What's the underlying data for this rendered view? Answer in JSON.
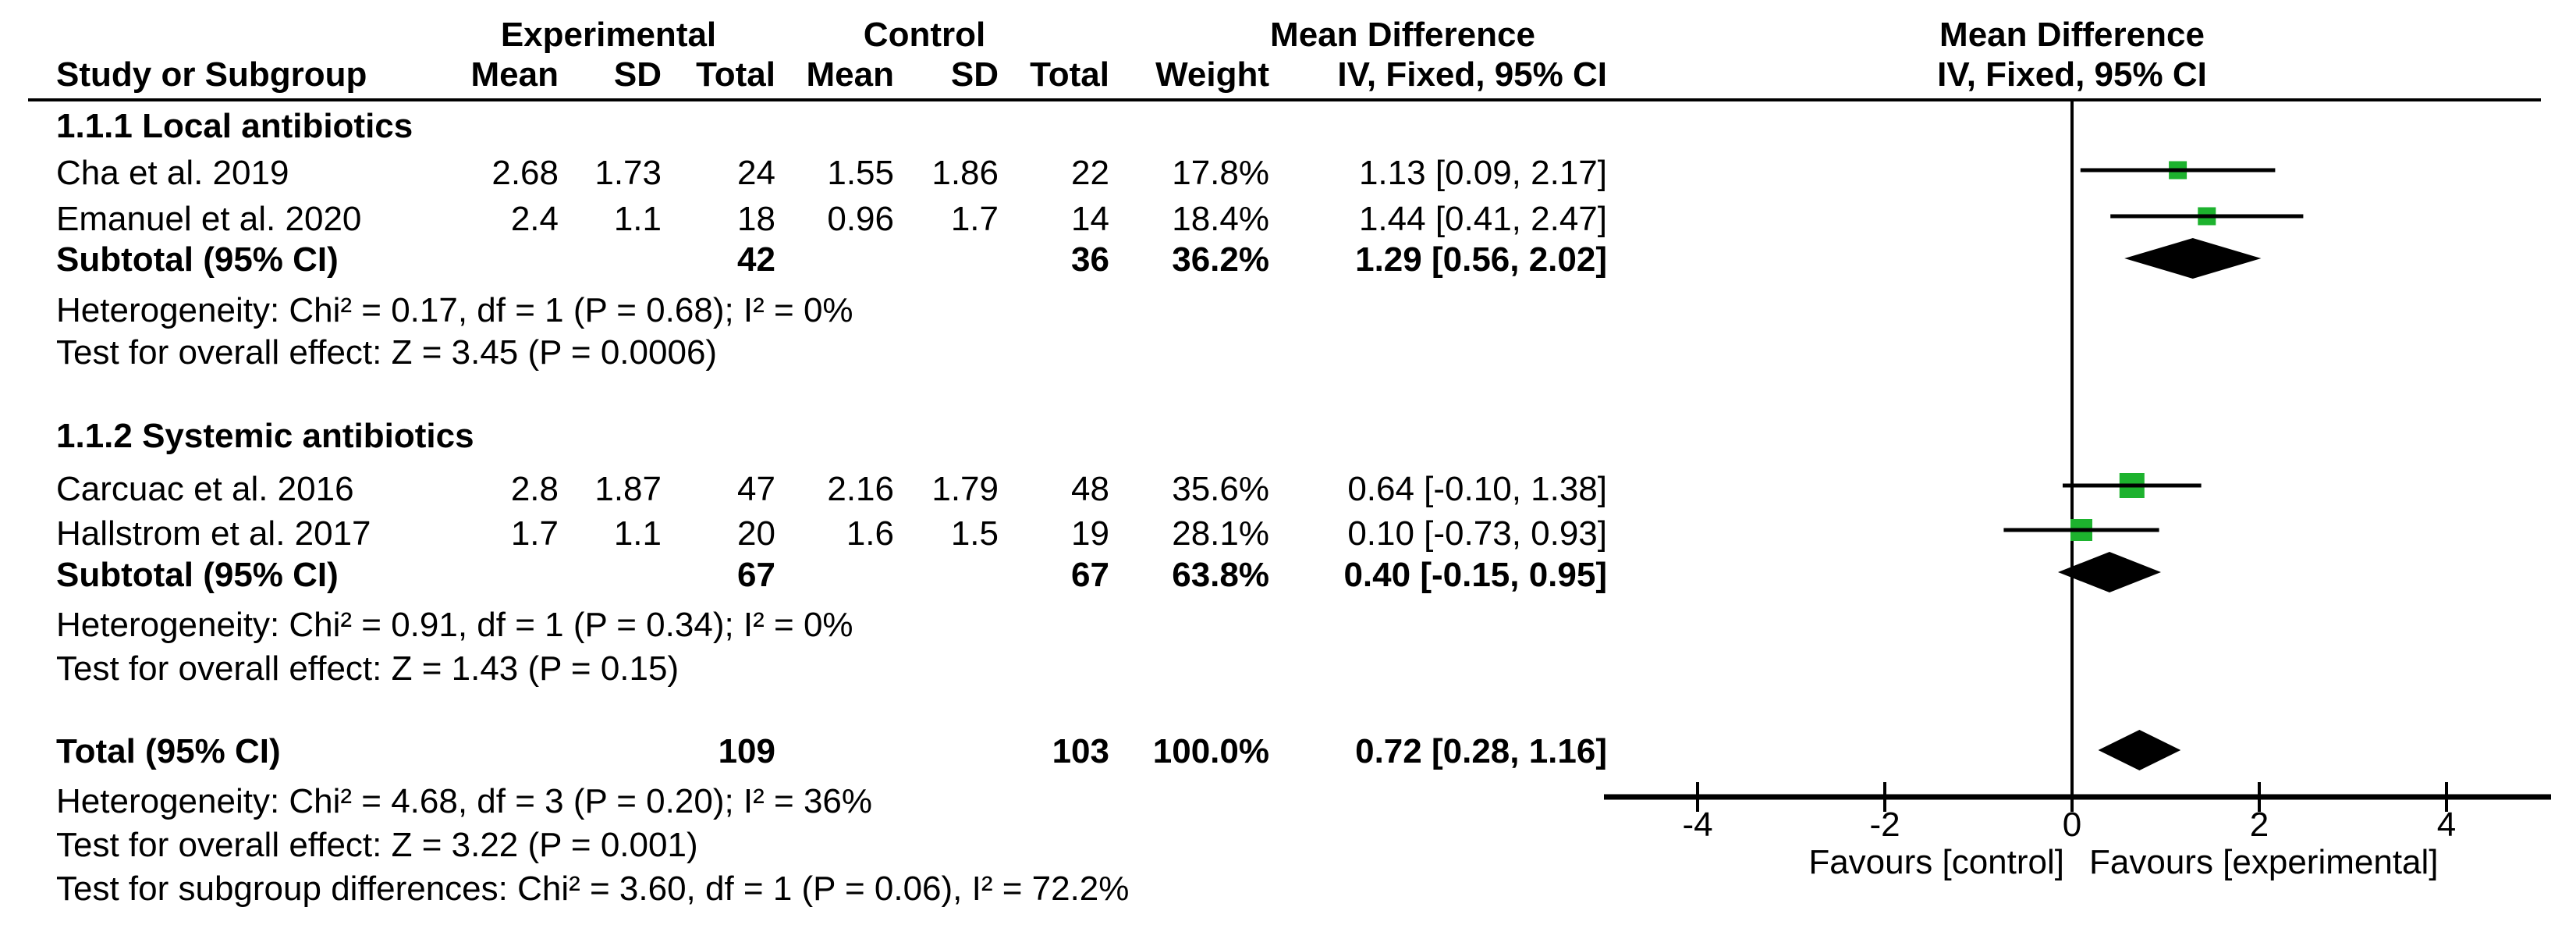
{
  "header": {
    "group_experimental": "Experimental",
    "group_control": "Control",
    "effect_label": "Mean Difference",
    "effect_label_plot": "Mean Difference",
    "col_study": "Study or Subgroup",
    "col_mean_e": "Mean",
    "col_sd_e": "SD",
    "col_total_e": "Total",
    "col_mean_c": "Mean",
    "col_sd_c": "SD",
    "col_total_c": "Total",
    "col_weight": "Weight",
    "col_ci": "IV, Fixed, 95% CI",
    "col_ci_plot": "IV, Fixed, 95% CI"
  },
  "sections": {
    "s1": {
      "title": "1.1.1 Local antibiotics",
      "het": "Heterogeneity: Chi² = 0.17, df = 1 (P = 0.68); I² = 0%",
      "test": "Test for overall effect: Z = 3.45 (P = 0.0006)"
    },
    "s2": {
      "title": "1.1.2 Systemic antibiotics",
      "het": "Heterogeneity: Chi² = 0.91, df = 1 (P = 0.34); I² = 0%",
      "test": "Test for overall effect: Z = 1.43 (P = 0.15)"
    }
  },
  "rows": {
    "cha": {
      "study": "Cha et al. 2019",
      "mean1": "2.68",
      "sd1": "1.73",
      "total1": "24",
      "mean2": "1.55",
      "sd2": "1.86",
      "total2": "22",
      "weight": "17.8%",
      "ci": "1.13 [0.09, 2.17]"
    },
    "emanuel": {
      "study": "Emanuel et al. 2020",
      "mean1": "2.4",
      "sd1": "1.1",
      "total1": "18",
      "mean2": "0.96",
      "sd2": "1.7",
      "total2": "14",
      "weight": "18.4%",
      "ci": "1.44 [0.41, 2.47]"
    },
    "subtotal1": {
      "label": "Subtotal (95% CI)",
      "total1": "42",
      "total2": "36",
      "weight": "36.2%",
      "ci": "1.29 [0.56, 2.02]"
    },
    "carcuac": {
      "study": "Carcuac et al. 2016",
      "mean1": "2.8",
      "sd1": "1.87",
      "total1": "47",
      "mean2": "2.16",
      "sd2": "1.79",
      "total2": "48",
      "weight": "35.6%",
      "ci": "0.64 [-0.10, 1.38]"
    },
    "hallstrom": {
      "study": "Hallstrom et al. 2017",
      "mean1": "1.7",
      "sd1": "1.1",
      "total1": "20",
      "mean2": "1.6",
      "sd2": "1.5",
      "total2": "19",
      "weight": "28.1%",
      "ci": "0.10 [-0.73, 0.93]"
    },
    "subtotal2": {
      "label": "Subtotal (95% CI)",
      "total1": "67",
      "total2": "67",
      "weight": "63.8%",
      "ci": "0.40 [-0.15, 0.95]"
    },
    "total": {
      "label": "Total (95% CI)",
      "total1": "109",
      "total2": "103",
      "weight": "100.0%",
      "ci": "0.72 [0.28, 1.16]"
    }
  },
  "footer": {
    "het": "Heterogeneity: Chi² = 4.68, df = 3 (P = 0.20); I² = 36%",
    "test": "Test for overall effect: Z = 3.22 (P = 0.001)",
    "subgroup": "Test for subgroup differences: Chi² = 3.60, df = 1 (P = 0.06), I² = 72.2%"
  },
  "chart_data": {
    "type": "scatter",
    "variant": "forest-plot",
    "title": "",
    "xlabel": "Mean Difference (IV, Fixed, 95% CI)",
    "xlim": [
      -5,
      5.1
    ],
    "marker_color": "#1db22e",
    "x_axis": {
      "ticks": [
        "-4",
        "-2",
        "0",
        "2",
        "4"
      ],
      "tick_values": [
        -4,
        -2,
        0,
        2,
        4
      ],
      "label_left": "Favours [control]",
      "label_right": "Favours [experimental]"
    },
    "studies": [
      {
        "id": "cha",
        "label": "Cha et al. 2019",
        "subgroup": "1.1.1 Local antibiotics",
        "md": 1.13,
        "ci": [
          0.09,
          2.17
        ],
        "weight_pct": 17.8
      },
      {
        "id": "emanuel",
        "label": "Emanuel et al. 2020",
        "subgroup": "1.1.1 Local antibiotics",
        "md": 1.44,
        "ci": [
          0.41,
          2.47
        ],
        "weight_pct": 18.4
      },
      {
        "id": "carcuac",
        "label": "Carcuac et al. 2016",
        "subgroup": "1.1.2 Systemic antibiotics",
        "md": 0.64,
        "ci": [
          -0.1,
          1.38
        ],
        "weight_pct": 35.6
      },
      {
        "id": "hallstrom",
        "label": "Hallstrom et al. 2017",
        "subgroup": "1.1.2 Systemic antibiotics",
        "md": 0.1,
        "ci": [
          -0.73,
          0.93
        ],
        "weight_pct": 28.1
      }
    ],
    "summaries": [
      {
        "id": "subtotal1",
        "label": "Subtotal 1.1.1 (95% CI)",
        "md": 1.29,
        "ci": [
          0.56,
          2.02
        ],
        "weight_pct": 36.2
      },
      {
        "id": "subtotal2",
        "label": "Subtotal 1.1.2 (95% CI)",
        "md": 0.4,
        "ci": [
          -0.15,
          0.95
        ],
        "weight_pct": 63.8
      },
      {
        "id": "total",
        "label": "Total (95% CI)",
        "md": 0.72,
        "ci": [
          0.28,
          1.16
        ],
        "weight_pct": 100.0
      }
    ]
  }
}
